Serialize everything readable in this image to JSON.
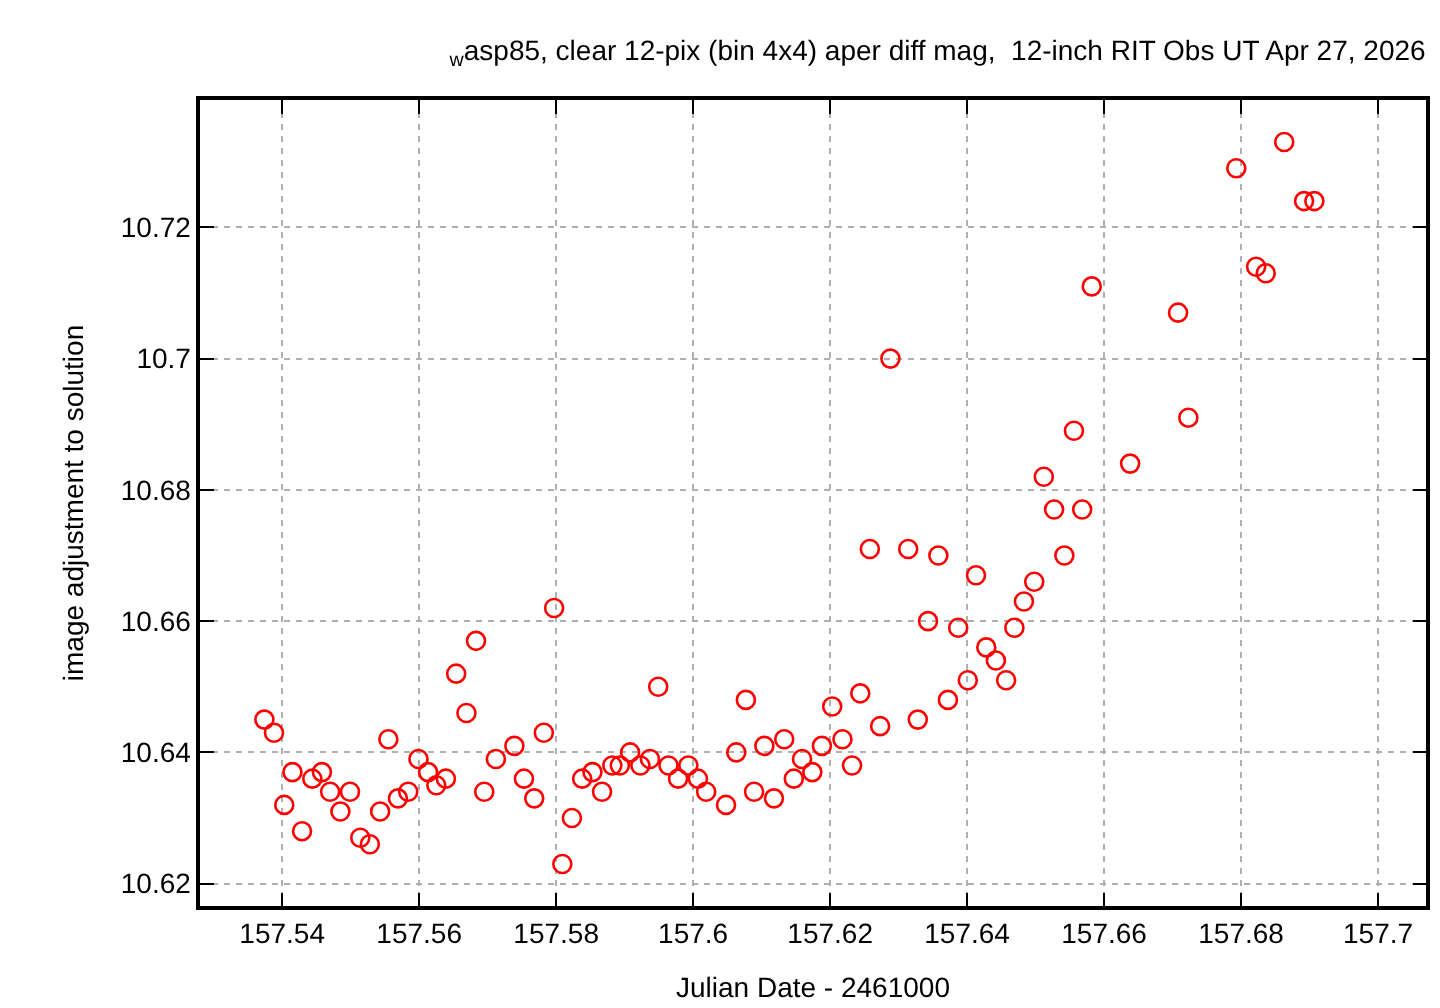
{
  "chart_data": {
    "type": "scatter",
    "title": "$_{w}$asp85, clear 12-pix (bin 4x4) aper diff mag,  12-inch RIT Obs UT Apr 27, 2026",
    "xlabel": "Julian Date - 2461000",
    "ylabel": "image adjustment to solution",
    "x": [
      157.5374,
      157.5388,
      157.5403,
      157.5415,
      157.5429,
      157.5444,
      157.5458,
      157.547,
      157.5485,
      157.5499,
      157.5514,
      157.5528,
      157.5543,
      157.5555,
      157.5569,
      157.5584,
      157.5599,
      157.5613,
      157.5625,
      157.5639,
      157.5654,
      157.5669,
      157.5683,
      157.5695,
      157.5712,
      157.5739,
      157.5753,
      157.5768,
      157.5782,
      157.5797,
      157.5809,
      157.5823,
      157.5838,
      157.5853,
      157.5867,
      157.5882,
      157.5893,
      157.5908,
      157.5923,
      157.5937,
      157.5949,
      157.5964,
      157.5978,
      157.5993,
      157.6007,
      157.6019,
      157.6048,
      157.6063,
      157.6077,
      157.6089,
      157.6104,
      157.6118,
      157.6133,
      157.6147,
      157.6159,
      157.6174,
      157.6188,
      157.6203,
      157.6218,
      157.6232,
      157.6244,
      157.6258,
      157.6273,
      157.6288,
      157.6314,
      157.6328,
      157.6343,
      157.6358,
      157.6372,
      157.6387,
      157.6401,
      157.6413,
      157.6428,
      157.6442,
      157.6457,
      157.6469,
      157.6483,
      157.6498,
      157.6512,
      157.6527,
      157.6542,
      157.6556,
      157.6568,
      157.6582,
      157.6638,
      157.6708,
      157.6723,
      157.6793,
      157.6822,
      157.6836,
      157.6863,
      157.6892,
      157.6907
    ],
    "series": [
      {
        "color": "#ff0000",
        "values": [
          10.645,
          10.643,
          10.632,
          10.637,
          10.628,
          10.636,
          10.637,
          10.634,
          10.631,
          10.634,
          10.627,
          10.626,
          10.631,
          10.642,
          10.633,
          10.634,
          10.639,
          10.637,
          10.635,
          10.636,
          10.652,
          10.646,
          10.657,
          10.634,
          10.639,
          10.641,
          10.636,
          10.633,
          10.643,
          10.662,
          10.623,
          10.63,
          10.636,
          10.637,
          10.634,
          10.638,
          10.638,
          10.64,
          10.638,
          10.639,
          10.65,
          10.638,
          10.636,
          10.638,
          10.636,
          10.634,
          10.632,
          10.64,
          10.648,
          10.634,
          10.641,
          10.633,
          10.642,
          10.636,
          10.639,
          10.637,
          10.641,
          10.647,
          10.642,
          10.638,
          10.649,
          10.671,
          10.644,
          10.7,
          10.671,
          10.645,
          10.66,
          10.67,
          10.648,
          10.659,
          10.651,
          10.667,
          10.656,
          10.654,
          10.651,
          10.659,
          10.663,
          10.666,
          10.682,
          10.677,
          10.67,
          10.689,
          10.677,
          10.711,
          10.684,
          10.707,
          10.691,
          10.729,
          10.714,
          10.713,
          10.733,
          10.724,
          10.724
        ]
      }
    ],
    "xlim": [
      157.528,
      157.707
    ],
    "ylim": [
      10.6166,
      10.7394
    ],
    "xticks": [
      157.54,
      157.56,
      157.58,
      {
        "value": 157.6,
        "label": "157.6"
      },
      157.62,
      157.64,
      157.66,
      157.68,
      {
        "value": 157.7,
        "label": "157.7"
      }
    ],
    "yticks": [
      10.62,
      10.64,
      10.66,
      10.68,
      {
        "value": 10.7,
        "label": "10.7"
      },
      10.72
    ],
    "grid": true,
    "marker": "circle"
  }
}
